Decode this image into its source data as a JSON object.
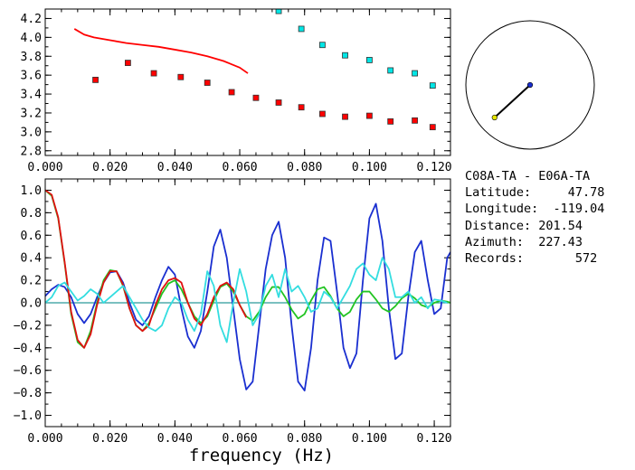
{
  "chart_data": [
    {
      "type": "scatter",
      "xlim": [
        0.0,
        0.125
      ],
      "ylim": [
        2.75,
        4.3
      ],
      "x_ticks": [
        "0.000",
        "0.020",
        "0.040",
        "0.060",
        "0.080",
        "0.100",
        "0.120"
      ],
      "x_tick_values": [
        0.0,
        0.02,
        0.04,
        0.06,
        0.08,
        0.1,
        0.12
      ],
      "y_ticks": [
        "2.8",
        "3.0",
        "3.2",
        "3.4",
        "3.6",
        "3.8",
        "4.0",
        "4.2"
      ],
      "y_tick_values": [
        2.8,
        3.0,
        3.2,
        3.4,
        3.6,
        3.8,
        4.0,
        4.2
      ],
      "series": [
        {
          "kind": "line",
          "color": "#ff0000",
          "x": [
            0.009,
            0.012,
            0.015,
            0.02,
            0.025,
            0.03,
            0.035,
            0.04,
            0.045,
            0.05,
            0.055,
            0.06,
            0.0625
          ],
          "y": [
            4.09,
            4.03,
            4.0,
            3.97,
            3.94,
            3.92,
            3.9,
            3.87,
            3.84,
            3.8,
            3.75,
            3.68,
            3.62
          ]
        },
        {
          "kind": "markers",
          "color": "#ff0000",
          "x": [
            0.0155,
            0.0255,
            0.0335,
            0.0418,
            0.05,
            0.0575,
            0.065,
            0.072,
            0.079,
            0.0855,
            0.0925,
            0.1,
            0.1065,
            0.114,
            0.1195
          ],
          "y": [
            3.55,
            3.73,
            3.62,
            3.58,
            3.52,
            3.42,
            3.36,
            3.31,
            3.26,
            3.19,
            3.16,
            3.17,
            3.11,
            3.12,
            3.05
          ]
        },
        {
          "kind": "markers",
          "color": "#00e6e6",
          "x": [
            0.072,
            0.079,
            0.0855,
            0.0925,
            0.1,
            0.1065,
            0.114,
            0.1195
          ],
          "y": [
            4.28,
            4.09,
            3.92,
            3.81,
            3.76,
            3.65,
            3.62,
            3.49
          ]
        }
      ]
    },
    {
      "type": "line",
      "xlim": [
        0.0,
        0.125
      ],
      "ylim": [
        -1.1,
        1.1
      ],
      "x_ticks": [
        "0.000",
        "0.020",
        "0.040",
        "0.060",
        "0.080",
        "0.100",
        "0.120"
      ],
      "x_tick_values": [
        0.0,
        0.02,
        0.04,
        0.06,
        0.08,
        0.1,
        0.12
      ],
      "y_ticks": [
        "1.0",
        "0.8",
        "0.6",
        "0.4",
        "0.2",
        "0.0",
        "−0.2",
        "−0.4",
        "−0.6",
        "−0.8",
        "−1.0"
      ],
      "y_tick_values": [
        1.0,
        0.8,
        0.6,
        0.4,
        0.2,
        0.0,
        -0.2,
        -0.4,
        -0.6,
        -0.8,
        -1.0
      ],
      "xlabel": "frequency (Hz)",
      "zero_line": true,
      "series": [
        {
          "color": "#1a2fd0",
          "x": [
            0.0,
            0.002,
            0.004,
            0.006,
            0.008,
            0.01,
            0.012,
            0.014,
            0.016,
            0.018,
            0.02,
            0.022,
            0.024,
            0.026,
            0.028,
            0.03,
            0.032,
            0.034,
            0.036,
            0.038,
            0.04,
            0.042,
            0.044,
            0.046,
            0.048,
            0.05,
            0.052,
            0.054,
            0.056,
            0.058,
            0.06,
            0.062,
            0.064,
            0.066,
            0.068,
            0.07,
            0.072,
            0.074,
            0.076,
            0.078,
            0.08,
            0.082,
            0.084,
            0.086,
            0.088,
            0.09,
            0.092,
            0.094,
            0.096,
            0.098,
            0.1,
            0.102,
            0.104,
            0.106,
            0.108,
            0.11,
            0.112,
            0.114,
            0.116,
            0.118,
            0.12,
            0.122,
            0.124,
            0.125
          ],
          "y": [
            0.06,
            0.12,
            0.16,
            0.14,
            0.05,
            -0.1,
            -0.18,
            -0.1,
            0.05,
            0.18,
            0.27,
            0.28,
            0.18,
            0.0,
            -0.15,
            -0.2,
            -0.12,
            0.05,
            0.2,
            0.32,
            0.25,
            -0.05,
            -0.3,
            -0.4,
            -0.25,
            0.1,
            0.5,
            0.65,
            0.4,
            -0.05,
            -0.5,
            -0.77,
            -0.7,
            -0.2,
            0.3,
            0.6,
            0.72,
            0.4,
            -0.2,
            -0.7,
            -0.78,
            -0.4,
            0.2,
            0.58,
            0.55,
            0.1,
            -0.4,
            -0.58,
            -0.45,
            0.2,
            0.75,
            0.88,
            0.55,
            -0.05,
            -0.5,
            -0.45,
            0.05,
            0.45,
            0.55,
            0.2,
            -0.1,
            -0.05,
            0.4,
            0.45
          ]
        },
        {
          "color": "#22c422",
          "x": [
            0.0,
            0.002,
            0.004,
            0.006,
            0.008,
            0.01,
            0.012,
            0.014,
            0.016,
            0.018,
            0.02,
            0.022,
            0.024,
            0.026,
            0.028,
            0.03,
            0.032,
            0.034,
            0.036,
            0.038,
            0.04,
            0.042,
            0.044,
            0.046,
            0.048,
            0.05,
            0.052,
            0.054,
            0.056,
            0.058,
            0.06,
            0.062,
            0.064,
            0.066,
            0.068,
            0.07,
            0.072,
            0.074,
            0.076,
            0.078,
            0.08,
            0.082,
            0.084,
            0.086,
            0.088,
            0.09,
            0.092,
            0.094,
            0.096,
            0.098,
            0.1,
            0.102,
            0.104,
            0.106,
            0.108,
            0.11,
            0.112,
            0.114,
            0.116,
            0.118,
            0.12,
            0.122,
            0.124,
            0.125
          ],
          "y": [
            1.0,
            0.95,
            0.75,
            0.35,
            -0.1,
            -0.35,
            -0.4,
            -0.25,
            0.0,
            0.2,
            0.29,
            0.28,
            0.15,
            -0.05,
            -0.2,
            -0.25,
            -0.18,
            -0.05,
            0.08,
            0.17,
            0.2,
            0.12,
            0.0,
            -0.12,
            -0.18,
            -0.12,
            0.02,
            0.14,
            0.17,
            0.1,
            -0.02,
            -0.12,
            -0.16,
            -0.08,
            0.05,
            0.14,
            0.14,
            0.05,
            -0.06,
            -0.14,
            -0.1,
            0.02,
            0.12,
            0.14,
            0.06,
            -0.05,
            -0.12,
            -0.08,
            0.03,
            0.1,
            0.1,
            0.03,
            -0.05,
            -0.08,
            -0.03,
            0.04,
            0.08,
            0.04,
            -0.02,
            -0.04,
            0.0,
            0.02,
            0.01,
            0.0
          ]
        },
        {
          "color": "#e01010",
          "x": [
            0.0,
            0.002,
            0.004,
            0.006,
            0.008,
            0.01,
            0.012,
            0.014,
            0.016,
            0.018,
            0.02,
            0.022,
            0.024,
            0.026,
            0.028,
            0.03,
            0.032,
            0.034,
            0.036,
            0.038,
            0.04,
            0.042,
            0.044,
            0.046,
            0.048,
            0.05,
            0.052,
            0.054,
            0.056,
            0.058,
            0.06,
            0.062
          ],
          "y": [
            1.0,
            0.96,
            0.76,
            0.36,
            -0.08,
            -0.33,
            -0.4,
            -0.28,
            -0.02,
            0.18,
            0.28,
            0.28,
            0.16,
            -0.05,
            -0.2,
            -0.25,
            -0.2,
            -0.02,
            0.12,
            0.2,
            0.22,
            0.18,
            0.0,
            -0.14,
            -0.2,
            -0.1,
            0.05,
            0.15,
            0.18,
            0.12,
            -0.02,
            -0.13
          ]
        },
        {
          "color": "#33dde0",
          "x": [
            0.0,
            0.002,
            0.004,
            0.006,
            0.008,
            0.01,
            0.012,
            0.014,
            0.016,
            0.018,
            0.02,
            0.022,
            0.024,
            0.026,
            0.028,
            0.03,
            0.032,
            0.034,
            0.036,
            0.038,
            0.04,
            0.042,
            0.044,
            0.046,
            0.048,
            0.05,
            0.052,
            0.054,
            0.056,
            0.058,
            0.06,
            0.062,
            0.064,
            0.066,
            0.068,
            0.07,
            0.072,
            0.074,
            0.076,
            0.078,
            0.08,
            0.082,
            0.084,
            0.086,
            0.088,
            0.09,
            0.092,
            0.094,
            0.096,
            0.098,
            0.1,
            0.102,
            0.104,
            0.106,
            0.108,
            0.11,
            0.112,
            0.114,
            0.116,
            0.118,
            0.12,
            0.122,
            0.124
          ],
          "y": [
            0.0,
            0.05,
            0.15,
            0.18,
            0.1,
            0.02,
            0.06,
            0.12,
            0.08,
            0.0,
            0.05,
            0.1,
            0.15,
            0.05,
            -0.05,
            -0.15,
            -0.22,
            -0.25,
            -0.2,
            -0.05,
            0.05,
            0.0,
            -0.15,
            -0.25,
            -0.1,
            0.28,
            0.15,
            -0.2,
            -0.35,
            0.0,
            0.3,
            0.1,
            -0.2,
            -0.1,
            0.15,
            0.25,
            0.05,
            0.3,
            0.1,
            0.15,
            0.05,
            -0.08,
            -0.05,
            0.1,
            0.05,
            -0.05,
            0.05,
            0.15,
            0.3,
            0.35,
            0.25,
            0.2,
            0.4,
            0.3,
            0.05,
            0.05,
            0.1,
            0.0,
            0.05,
            -0.05,
            0.03,
            0.02,
            0.0
          ]
        }
      ]
    }
  ],
  "azimuth_diagram": {
    "azimuth_deg": 227.43,
    "relative_distance": 0.75,
    "line_color": "#000000",
    "center_dot_color": "#1a2fd0",
    "end_dot_color": "#e6e600"
  },
  "info": {
    "title": "C08A-TA - E06A-TA",
    "rows": [
      {
        "label": "Latitude:",
        "value": "     47.78"
      },
      {
        "label": "Longitude:",
        "value": "  -119.04"
      },
      {
        "label": "Distance:",
        "value": " 201.54"
      },
      {
        "label": "Azimuth:",
        "value": "  227.43"
      },
      {
        "label": "Records:",
        "value": "       572"
      }
    ]
  }
}
